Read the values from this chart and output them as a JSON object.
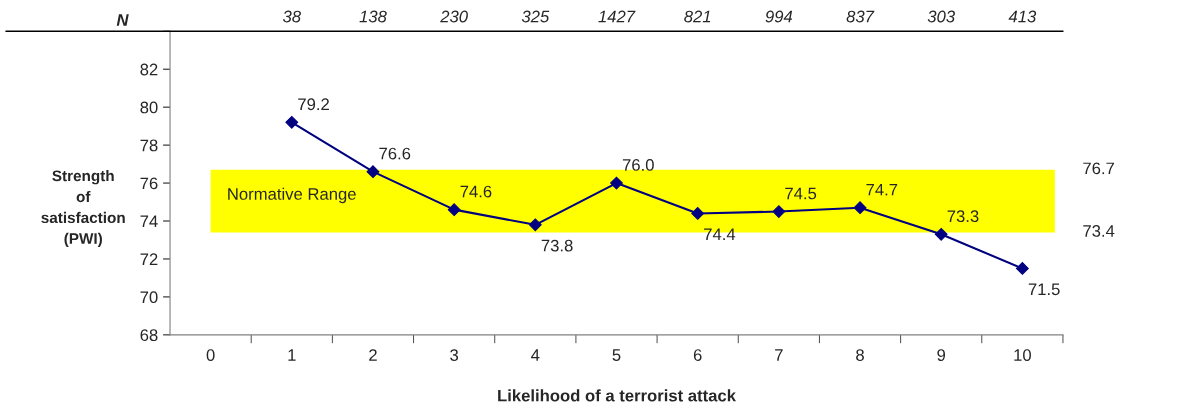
{
  "chart_data": {
    "type": "line",
    "xlabel": "Likelihood of a terrorist attack",
    "ylabel": "Strength\nof\nsatisfaction\n(PWI)",
    "categories": [
      "0",
      "1",
      "2",
      "3",
      "4",
      "5",
      "6",
      "7",
      "8",
      "9",
      "10"
    ],
    "series": [
      {
        "color": "#000080",
        "values": [
          null,
          79.2,
          76.6,
          74.6,
          73.8,
          76.0,
          74.4,
          74.5,
          74.7,
          73.3,
          71.5
        ],
        "value_labels": [
          null,
          "79.2",
          "76.6",
          "74.6",
          "73.8",
          "76.0",
          "74.4",
          "74.5",
          "74.7",
          "73.3",
          "71.5"
        ]
      }
    ],
    "ylim": [
      68,
      84
    ],
    "yticks": [
      68,
      70,
      72,
      74,
      76,
      78,
      80,
      82,
      {
        "value": 84,
        "label": null
      }
    ],
    "bands": [
      {
        "axis": "y",
        "from": 73.4,
        "to": 76.7,
        "label": "Normative Range",
        "color": "#ffff00"
      }
    ],
    "annotations": [
      "N",
      "38",
      "138",
      "230",
      "325",
      "1427",
      "821",
      "994",
      "837",
      "303",
      "413",
      "76.7",
      "73.4"
    ],
    "marker": "diamond",
    "line_style": "solid",
    "grid": false,
    "legend": false
  }
}
